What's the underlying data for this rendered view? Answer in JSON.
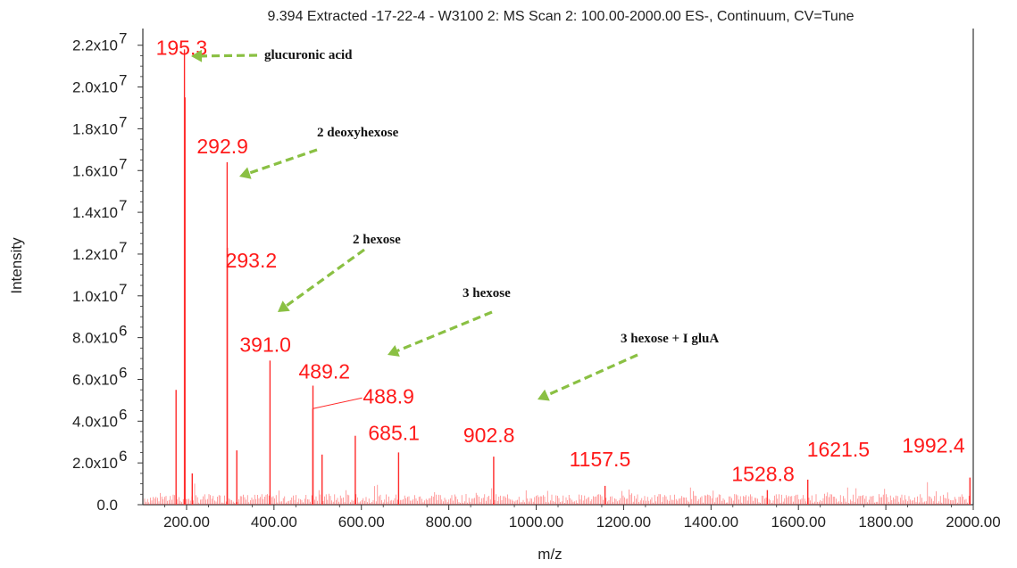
{
  "chart_data": {
    "type": "line",
    "title": "9.394 Extracted -17-22-4 - W3100 2: MS Scan 2: 100.00-2000.00 ES-, Continuum, CV=Tune",
    "xlabel": "m/z",
    "ylabel": "Intensity",
    "xlim": [
      100,
      2000
    ],
    "ylim": [
      0,
      22800000
    ],
    "x_ticks": [
      200,
      400,
      600,
      800,
      1000,
      1200,
      1400,
      1600,
      1800,
      2000
    ],
    "x_tick_labels": [
      "200.00",
      "400.00",
      "600.00",
      "800.00",
      "1000.00",
      "1200.00",
      "1400.00",
      "1600.00",
      "1800.00",
      "2000.00"
    ],
    "y_ticks": [
      0,
      2000000,
      4000000,
      6000000,
      8000000,
      10000000,
      12000000,
      14000000,
      16000000,
      18000000,
      20000000,
      22000000
    ],
    "y_tick_labels": [
      {
        "mant": "0.0",
        "exp": ""
      },
      {
        "mant": "2.0x10",
        "exp": "6"
      },
      {
        "mant": "4.0x10",
        "exp": "6"
      },
      {
        "mant": "6.0x10",
        "exp": "6"
      },
      {
        "mant": "8.0x10",
        "exp": "6"
      },
      {
        "mant": "1.0x10",
        "exp": "7"
      },
      {
        "mant": "1.2x10",
        "exp": "7"
      },
      {
        "mant": "1.4x10",
        "exp": "7"
      },
      {
        "mant": "1.6x10",
        "exp": "7"
      },
      {
        "mant": "1.8x10",
        "exp": "7"
      },
      {
        "mant": "2.0x10",
        "exp": "7"
      },
      {
        "mant": "2.2x10",
        "exp": "7"
      }
    ],
    "line_color": "#ff2a2a",
    "label_color": "#ff1a1a",
    "arrow_color": "#8ac043",
    "grid": false,
    "series": [
      {
        "peaks": [
          {
            "x": 176,
            "y": 5500000
          },
          {
            "x": 195.3,
            "y": 21800000
          },
          {
            "x": 196.5,
            "y": 19500000
          },
          {
            "x": 213,
            "y": 1500000
          },
          {
            "x": 292.9,
            "y": 16400000
          },
          {
            "x": 293.2,
            "y": 12300000
          },
          {
            "x": 315,
            "y": 2600000
          },
          {
            "x": 391.0,
            "y": 6900000
          },
          {
            "x": 489.2,
            "y": 5700000
          },
          {
            "x": 488.9,
            "y": 4600000
          },
          {
            "x": 510,
            "y": 2400000
          },
          {
            "x": 586,
            "y": 3300000
          },
          {
            "x": 685.1,
            "y": 2500000
          },
          {
            "x": 902.8,
            "y": 2300000
          },
          {
            "x": 1157.5,
            "y": 900000
          },
          {
            "x": 1528.8,
            "y": 700000
          },
          {
            "x": 1621.5,
            "y": 1200000
          },
          {
            "x": 1992.4,
            "y": 1300000
          }
        ]
      }
    ],
    "peak_labels": [
      {
        "text": "195.3",
        "x": 195.3,
        "y": 21800000
      },
      {
        "text": "292.9",
        "x": 292.9,
        "y": 16400000
      },
      {
        "text": "293.2",
        "x": 293.2,
        "y": 12300000
      },
      {
        "text": "391.0",
        "x": 391.0,
        "y": 6900000
      },
      {
        "text": "489.2",
        "x": 489.2,
        "y": 5700000
      },
      {
        "text": "488.9",
        "x": 488.9,
        "y": 4600000
      },
      {
        "text": "685.1",
        "x": 685.1,
        "y": 2500000
      },
      {
        "text": "902.8",
        "x": 902.8,
        "y": 2300000
      },
      {
        "text": "1157.5",
        "x": 1157.5,
        "y": 900000
      },
      {
        "text": "1528.8",
        "x": 1528.8,
        "y": 700000
      },
      {
        "text": "1621.5",
        "x": 1621.5,
        "y": 1200000
      },
      {
        "text": "1992.4",
        "x": 1992.4,
        "y": 1300000
      }
    ],
    "annotations": [
      {
        "text": "glucuronic acid",
        "target": "195.3"
      },
      {
        "text": "2 deoxyhexose",
        "target": "292.9"
      },
      {
        "text": "2 hexose",
        "target": "391.0"
      },
      {
        "text": "3 hexose",
        "target": "489.2"
      },
      {
        "text": "3 hexose + I gluA",
        "target": "685.1"
      }
    ]
  }
}
